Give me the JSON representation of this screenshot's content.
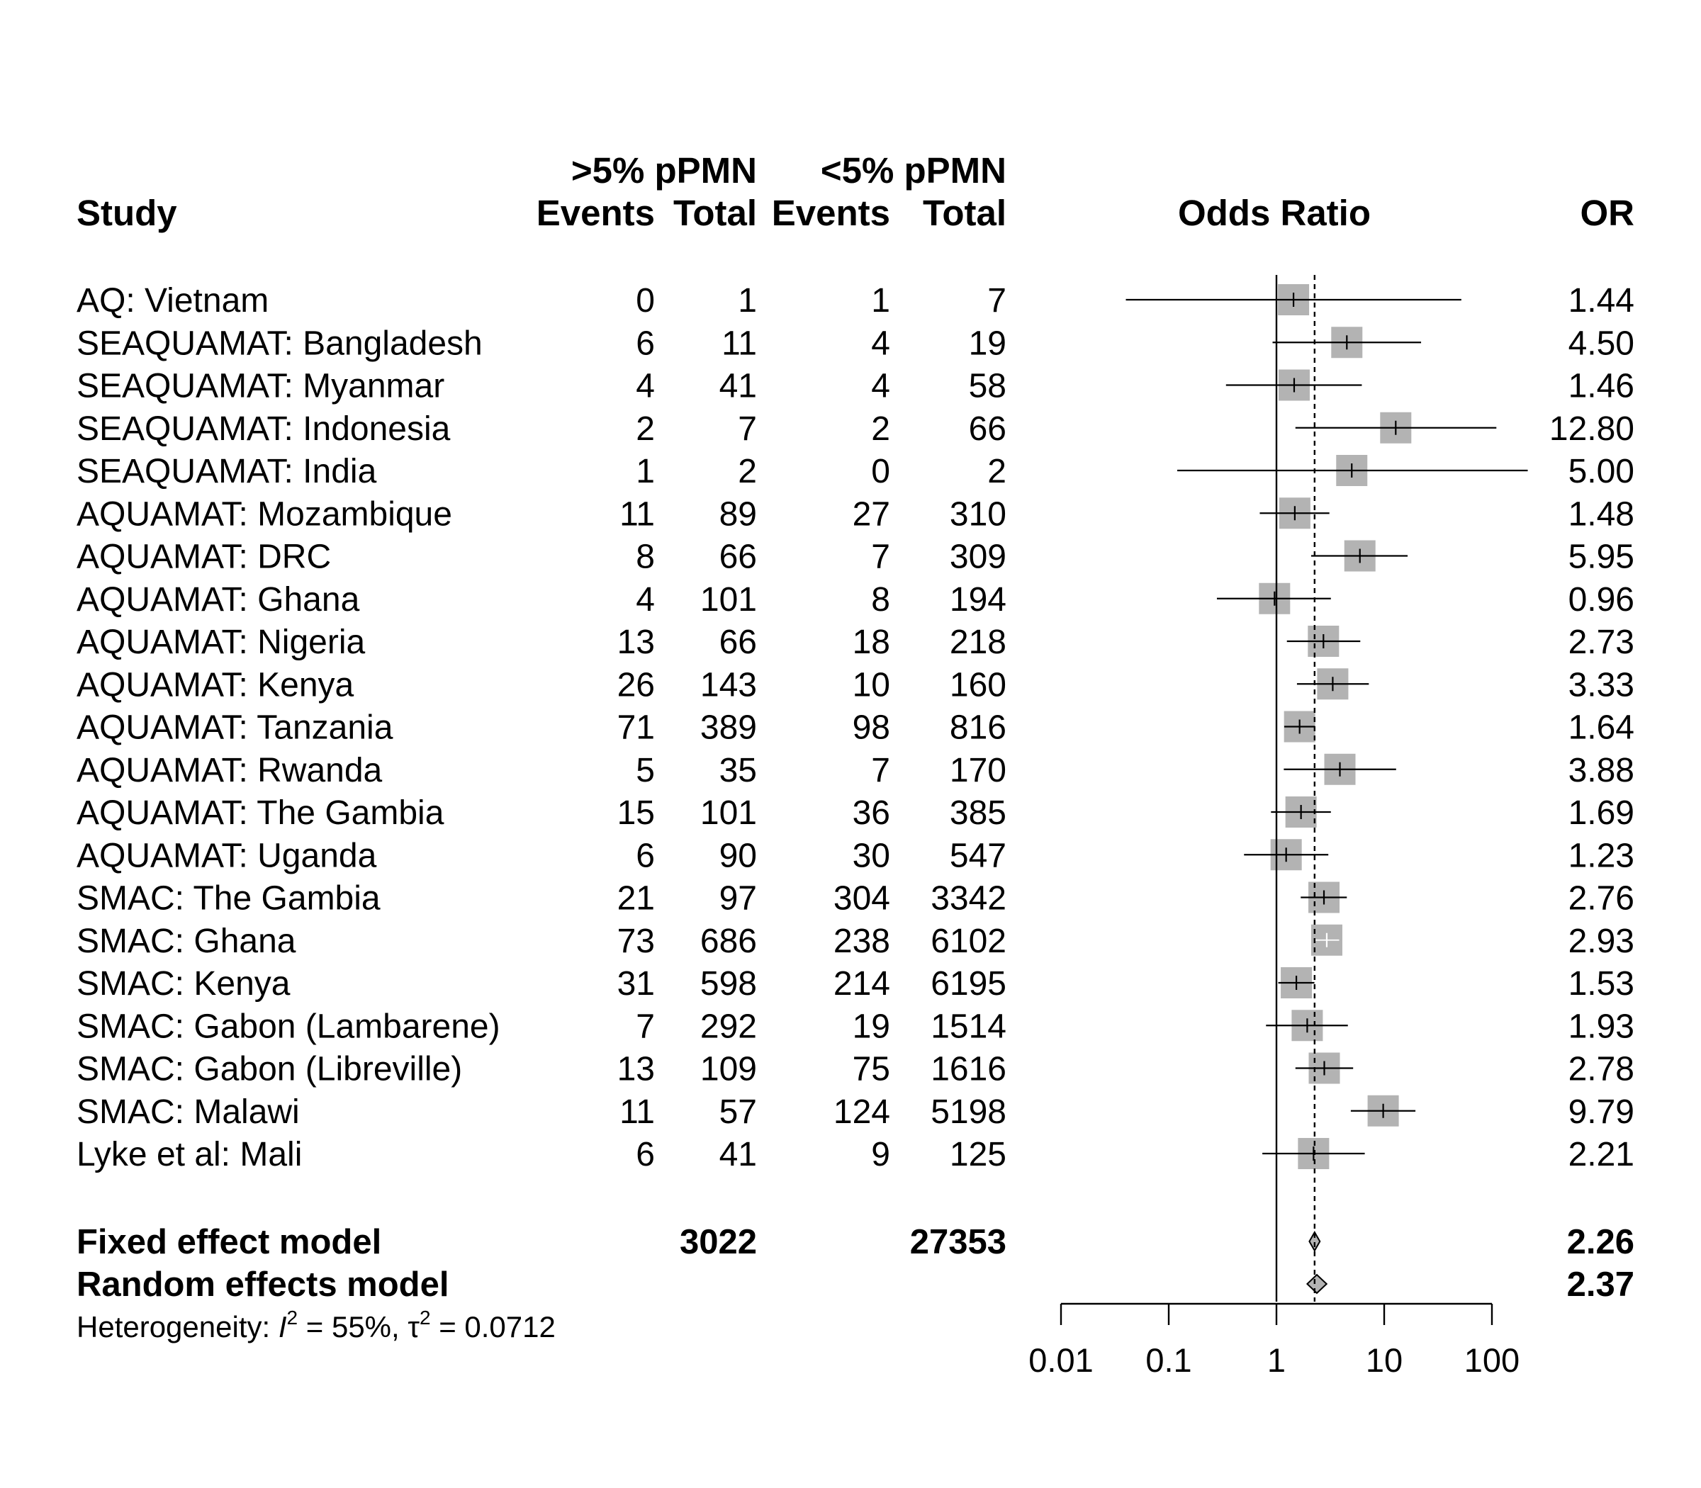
{
  "chart_data": {
    "type": "forest",
    "headers": {
      "study": "Study",
      "group1": ">5% pPMN",
      "group2": "<5% pPMN",
      "events": "Events",
      "total": "Total",
      "plot": "Odds Ratio",
      "or": "OR"
    },
    "studies": [
      {
        "name": "AQ: Vietnam",
        "e1": "0",
        "n1": "1",
        "e2": "1",
        "n2": "7",
        "or": 1.44,
        "or_label": "1.44",
        "ci": [
          0.04,
          52
        ],
        "weight": 1.0
      },
      {
        "name": "SEAQUAMAT: Bangladesh",
        "e1": "6",
        "n1": "11",
        "e2": "4",
        "n2": "19",
        "or": 4.5,
        "or_label": "4.50",
        "ci": [
          0.92,
          22
        ],
        "weight": 1.0
      },
      {
        "name": "SEAQUAMAT: Myanmar",
        "e1": "4",
        "n1": "41",
        "e2": "4",
        "n2": "58",
        "or": 1.46,
        "or_label": "1.46",
        "ci": [
          0.34,
          6.2
        ],
        "weight": 1.0
      },
      {
        "name": "SEAQUAMAT: Indonesia",
        "e1": "2",
        "n1": "7",
        "e2": "2",
        "n2": "66",
        "or": 12.8,
        "or_label": "12.80",
        "ci": [
          1.5,
          110
        ],
        "weight": 1.0
      },
      {
        "name": "SEAQUAMAT: India",
        "e1": "1",
        "n1": "2",
        "e2": "0",
        "n2": "2",
        "or": 5.0,
        "or_label": "5.00",
        "ci": [
          0.12,
          215
        ],
        "weight": 1.0
      },
      {
        "name": "AQUAMAT: Mozambique",
        "e1": "11",
        "n1": "89",
        "e2": "27",
        "n2": "310",
        "or": 1.48,
        "or_label": "1.48",
        "ci": [
          0.7,
          3.1
        ],
        "weight": 1.0
      },
      {
        "name": "AQUAMAT: DRC",
        "e1": "8",
        "n1": "66",
        "e2": "7",
        "n2": "309",
        "or": 5.95,
        "or_label": "5.95",
        "ci": [
          2.1,
          16.5
        ],
        "weight": 1.0
      },
      {
        "name": "AQUAMAT: Ghana",
        "e1": "4",
        "n1": "101",
        "e2": "8",
        "n2": "194",
        "or": 0.96,
        "or_label": "0.96",
        "ci": [
          0.28,
          3.2
        ],
        "weight": 1.0
      },
      {
        "name": "AQUAMAT: Nigeria",
        "e1": "13",
        "n1": "66",
        "e2": "18",
        "n2": "218",
        "or": 2.73,
        "or_label": "2.73",
        "ci": [
          1.25,
          6.0
        ],
        "weight": 1.0
      },
      {
        "name": "AQUAMAT: Kenya",
        "e1": "26",
        "n1": "143",
        "e2": "10",
        "n2": "160",
        "or": 3.33,
        "or_label": "3.33",
        "ci": [
          1.55,
          7.2
        ],
        "weight": 1.0
      },
      {
        "name": "AQUAMAT: Tanzania",
        "e1": "71",
        "n1": "389",
        "e2": "98",
        "n2": "816",
        "or": 1.64,
        "or_label": "1.64",
        "ci": [
          1.18,
          2.28
        ],
        "weight": 1.0
      },
      {
        "name": "AQUAMAT: Rwanda",
        "e1": "5",
        "n1": "35",
        "e2": "7",
        "n2": "170",
        "or": 3.88,
        "or_label": "3.88",
        "ci": [
          1.17,
          12.9
        ],
        "weight": 1.0
      },
      {
        "name": "AQUAMAT: The Gambia",
        "e1": "15",
        "n1": "101",
        "e2": "36",
        "n2": "385",
        "or": 1.69,
        "or_label": "1.69",
        "ci": [
          0.89,
          3.2
        ],
        "weight": 1.0
      },
      {
        "name": "AQUAMAT: Uganda",
        "e1": "6",
        "n1": "90",
        "e2": "30",
        "n2": "547",
        "or": 1.23,
        "or_label": "1.23",
        "ci": [
          0.5,
          3.03
        ],
        "weight": 1.0
      },
      {
        "name": "SMAC: The Gambia",
        "e1": "21",
        "n1": "97",
        "e2": "304",
        "n2": "3342",
        "or": 2.76,
        "or_label": "2.76",
        "ci": [
          1.68,
          4.5
        ],
        "weight": 1.0
      },
      {
        "name": "SMAC: Ghana",
        "e1": "73",
        "n1": "686",
        "e2": "238",
        "n2": "6102",
        "or": 2.93,
        "or_label": "2.93",
        "ci": [
          2.24,
          3.84
        ],
        "weight": 1.0,
        "light_ci": true
      },
      {
        "name": "SMAC: Kenya",
        "e1": "31",
        "n1": "598",
        "e2": "214",
        "n2": "6195",
        "or": 1.53,
        "or_label": "1.53",
        "ci": [
          1.04,
          2.25
        ],
        "weight": 1.0
      },
      {
        "name": "SMAC: Gabon (Lambarene)",
        "e1": "7",
        "n1": "292",
        "e2": "19",
        "n2": "1514",
        "or": 1.93,
        "or_label": "1.93",
        "ci": [
          0.8,
          4.6
        ],
        "weight": 1.0
      },
      {
        "name": "SMAC: Gabon (Libreville)",
        "e1": "13",
        "n1": "109",
        "e2": "75",
        "n2": "1616",
        "or": 2.78,
        "or_label": "2.78",
        "ci": [
          1.5,
          5.15
        ],
        "weight": 1.0
      },
      {
        "name": "SMAC: Malawi",
        "e1": "11",
        "n1": "57",
        "e2": "124",
        "n2": "5198",
        "or": 9.79,
        "or_label": "9.79",
        "ci": [
          4.9,
          19.5
        ],
        "weight": 1.0
      },
      {
        "name": "Lyke et al: Mali",
        "e1": "6",
        "n1": "41",
        "e2": "9",
        "n2": "125",
        "or": 2.21,
        "or_label": "2.21",
        "ci": [
          0.74,
          6.6
        ],
        "weight": 1.0
      }
    ],
    "summaries": [
      {
        "name": "Fixed effect model",
        "n1": "3022",
        "n2": "27353",
        "or": 2.26,
        "or_label": "2.26",
        "ci": [
          2.02,
          2.53
        ]
      },
      {
        "name": "Random effects model",
        "n1": "",
        "n2": "",
        "or": 2.37,
        "or_label": "2.37",
        "ci": [
          1.93,
          2.92
        ]
      }
    ],
    "heterogeneity": {
      "prefix": "Heterogeneity: ",
      "i2_symbol": "I",
      "i2_value": " = 55%, ",
      "tau_symbol": "τ",
      "tau_value": " = 0.0712",
      "superscript": "2"
    },
    "x_axis": {
      "scale": "log",
      "ticks": [
        0.01,
        0.1,
        1,
        10,
        100
      ],
      "tick_labels": [
        "0.01",
        "0.1",
        "1",
        "10",
        "100"
      ],
      "range": [
        0.01,
        100
      ],
      "null_line": 1,
      "pooled_line": 2.26
    },
    "colors": {
      "box": "#b3b3b3",
      "diamond": "#b3b3b3",
      "ink": "#000000"
    }
  }
}
